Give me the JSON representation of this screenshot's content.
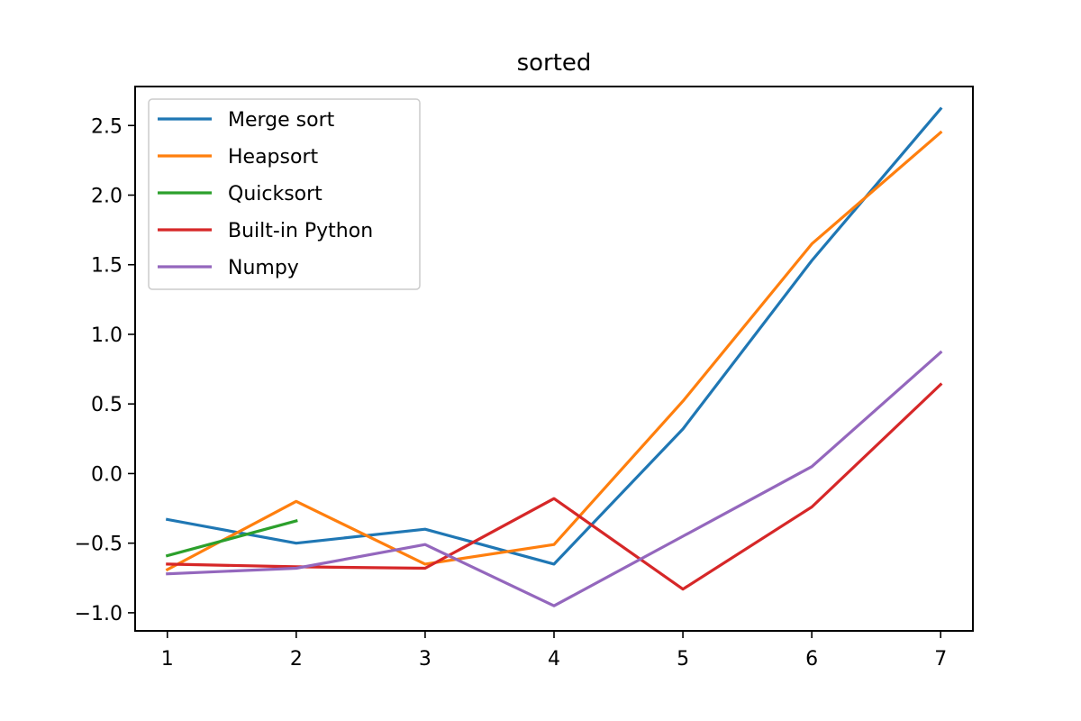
{
  "chart_data": {
    "type": "line",
    "title": "sorted",
    "xlabel": "",
    "ylabel": "",
    "x": [
      1,
      2,
      3,
      4,
      5,
      6,
      7
    ],
    "xlim": [
      0.75,
      7.25
    ],
    "ylim": [
      -1.13,
      2.78
    ],
    "xticks": [
      "1",
      "2",
      "3",
      "4",
      "5",
      "6",
      "7"
    ],
    "yticks": [
      "−1.0",
      "−0.5",
      "0.0",
      "0.5",
      "1.0",
      "1.5",
      "2.0",
      "2.5"
    ],
    "ytick_values": [
      -1.0,
      -0.5,
      0.0,
      0.5,
      1.0,
      1.5,
      2.0,
      2.5
    ],
    "grid": false,
    "legend_position": "top-left",
    "series": [
      {
        "name": "Merge sort",
        "color": "#1f77b4",
        "x": [
          1,
          2,
          3,
          4,
          5,
          6,
          7
        ],
        "values": [
          -0.33,
          -0.5,
          -0.4,
          -0.65,
          0.32,
          1.53,
          2.62
        ]
      },
      {
        "name": "Heapsort",
        "color": "#ff7f0e",
        "x": [
          1,
          2,
          3,
          4,
          5,
          6,
          7
        ],
        "values": [
          -0.69,
          -0.2,
          -0.65,
          -0.51,
          0.52,
          1.65,
          2.45
        ]
      },
      {
        "name": "Quicksort",
        "color": "#2ca02c",
        "x": [
          1,
          2
        ],
        "values": [
          -0.59,
          -0.34
        ]
      },
      {
        "name": "Built-in Python",
        "color": "#d62728",
        "x": [
          1,
          2,
          3,
          4,
          5,
          6,
          7
        ],
        "values": [
          -0.65,
          -0.67,
          -0.68,
          -0.18,
          -0.83,
          -0.24,
          0.64
        ]
      },
      {
        "name": "Numpy",
        "color": "#9467bd",
        "x": [
          1,
          2,
          3,
          4,
          5,
          6,
          7
        ],
        "values": [
          -0.72,
          -0.68,
          -0.51,
          -0.95,
          -0.45,
          0.05,
          0.87
        ]
      }
    ]
  }
}
